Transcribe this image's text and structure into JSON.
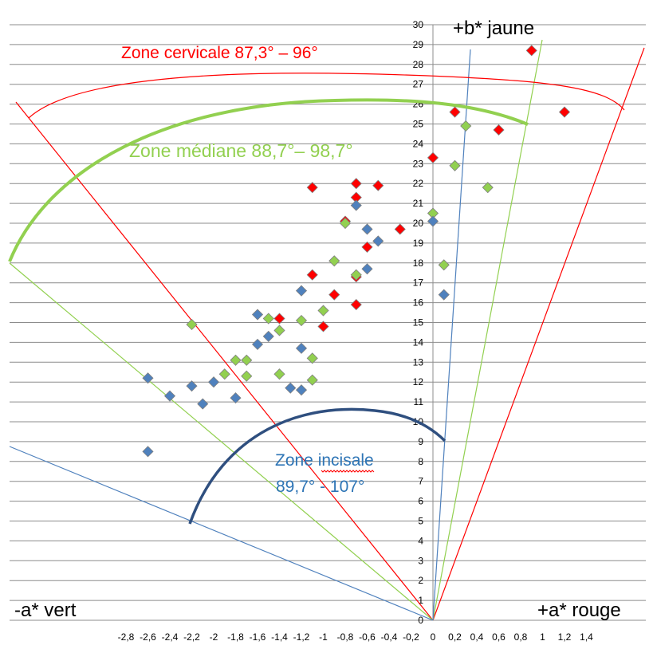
{
  "chart_data": {
    "type": "scatter",
    "xlim": [
      -2.8,
      1.4
    ],
    "ylim": [
      0,
      30
    ],
    "x_ticks": [
      "-2,8",
      "-2,6",
      "-2,4",
      "-2,2",
      "-2",
      "-1,8",
      "-1,6",
      "-1,4",
      "-1,2",
      "-1",
      "-0,8",
      "-0,6",
      "-0,4",
      "-0,2",
      "0",
      "0,2",
      "0,4",
      "0,6",
      "0,8",
      "1",
      "1,2",
      "1,4"
    ],
    "y_ticks": [
      "0",
      "1",
      "2",
      "3",
      "4",
      "5",
      "6",
      "7",
      "8",
      "9",
      "10",
      "11",
      "12",
      "13",
      "14",
      "15",
      "16",
      "17",
      "18",
      "19",
      "20",
      "21",
      "22",
      "23",
      "24",
      "25",
      "26",
      "27",
      "28",
      "29",
      "30"
    ],
    "grid": "horizontal",
    "axis_labels": {
      "y_positive": "+b* jaune",
      "x_negative": "-a* vert",
      "x_positive": "+a* rouge"
    },
    "annotations": {
      "cervical": "Zone cervicale 87,3° – 96°",
      "median": "Zone médiane 88,7°– 98,7°",
      "incisal_line1": "Zone incisale",
      "incisal_line2": "89,7° - 107°"
    },
    "colors": {
      "cervical": "#ff0000",
      "median": "#92d050",
      "incisal": "#4f81bd",
      "incisal_arc": "#2f4f7f"
    },
    "series": [
      {
        "color": "#ff0000",
        "points": [
          [
            0.9,
            28.7
          ],
          [
            0.2,
            25.6
          ],
          [
            1.2,
            25.6
          ],
          [
            0.6,
            24.7
          ],
          [
            0.0,
            23.3
          ],
          [
            -0.7,
            22.0
          ],
          [
            -0.5,
            21.9
          ],
          [
            -1.1,
            21.8
          ],
          [
            -0.7,
            21.3
          ],
          [
            -0.8,
            20.1
          ],
          [
            -0.3,
            19.7
          ],
          [
            -0.6,
            18.8
          ],
          [
            -1.1,
            17.4
          ],
          [
            -0.7,
            17.3
          ],
          [
            -0.9,
            16.4
          ],
          [
            -0.7,
            15.9
          ],
          [
            -1.4,
            15.2
          ],
          [
            -1.0,
            14.8
          ]
        ]
      },
      {
        "color": "#92d050",
        "points": [
          [
            0.3,
            24.9
          ],
          [
            0.2,
            22.9
          ],
          [
            0.5,
            21.8
          ],
          [
            0.0,
            20.5
          ],
          [
            -0.8,
            20.0
          ],
          [
            0.1,
            17.9
          ],
          [
            -0.9,
            18.1
          ],
          [
            -0.7,
            17.4
          ],
          [
            -1.0,
            15.6
          ],
          [
            -1.5,
            15.2
          ],
          [
            -1.2,
            15.1
          ],
          [
            -2.2,
            14.9
          ],
          [
            -1.4,
            14.6
          ],
          [
            -1.1,
            13.2
          ],
          [
            -1.8,
            13.1
          ],
          [
            -1.7,
            13.1
          ],
          [
            -1.9,
            12.4
          ],
          [
            -1.7,
            12.3
          ],
          [
            -1.4,
            12.4
          ],
          [
            -1.1,
            12.1
          ]
        ]
      },
      {
        "color": "#4f81bd",
        "points": [
          [
            -0.7,
            20.9
          ],
          [
            0.0,
            20.1
          ],
          [
            -0.6,
            19.7
          ],
          [
            -0.5,
            19.1
          ],
          [
            -0.6,
            17.7
          ],
          [
            -1.2,
            16.6
          ],
          [
            0.1,
            16.4
          ],
          [
            -1.6,
            15.4
          ],
          [
            -1.5,
            14.3
          ],
          [
            -1.6,
            13.9
          ],
          [
            -1.2,
            13.7
          ],
          [
            -2.6,
            12.2
          ],
          [
            -2.0,
            12.0
          ],
          [
            -2.2,
            11.8
          ],
          [
            -1.3,
            11.7
          ],
          [
            -1.2,
            11.6
          ],
          [
            -2.4,
            11.3
          ],
          [
            -1.8,
            11.2
          ],
          [
            -2.1,
            10.9
          ],
          [
            -2.6,
            8.5
          ]
        ]
      }
    ]
  }
}
